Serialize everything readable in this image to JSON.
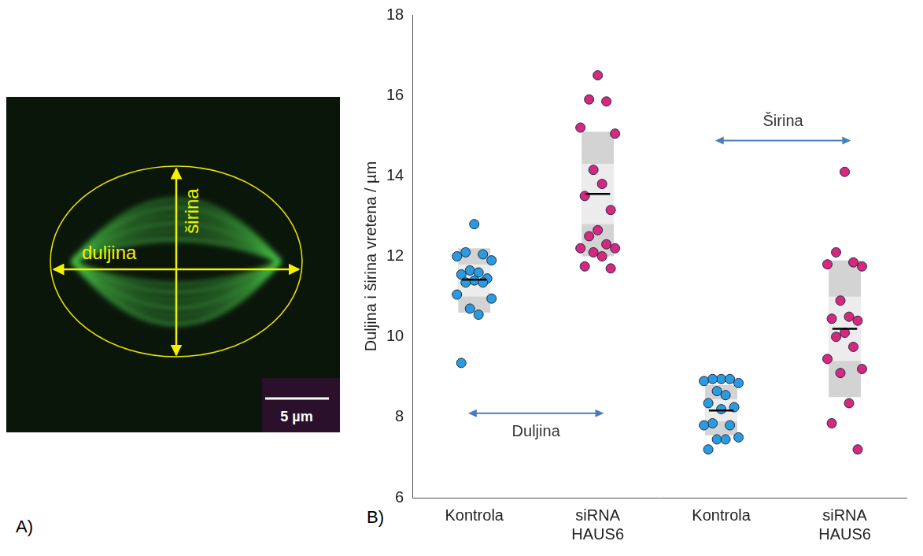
{
  "panel_a": {
    "letter": "A)",
    "length_label": "duljina",
    "width_label": "širina",
    "scale_bar": "5 µm"
  },
  "chart_data": {
    "type": "scatter",
    "letter": "B)",
    "y_label": "Duljina i širina vretena / µm",
    "ylim": [
      6,
      18
    ],
    "yticks": [
      6,
      8,
      10,
      12,
      14,
      16,
      18
    ],
    "grid": false,
    "marker": "circle",
    "groups": [
      {
        "label": "Duljina",
        "members": [
          {
            "category": "Kontrola",
            "color": "#2b9be0",
            "values": [
              12.8,
              12.1,
              12.05,
              12.0,
              11.9,
              11.65,
              11.6,
              11.55,
              11.45,
              11.4,
              11.35,
              11.35,
              11.05,
              10.95,
              10.7,
              10.55,
              9.35
            ],
            "mean": 11.42,
            "outer_band": [
              10.6,
              12.2
            ],
            "inner_band": [
              11.0,
              11.8
            ]
          },
          {
            "category": "siRNA HAUS6",
            "color": "#d6287f",
            "values": [
              16.5,
              15.9,
              15.85,
              15.2,
              15.05,
              14.15,
              13.8,
              13.5,
              13.15,
              12.65,
              12.5,
              12.3,
              12.2,
              12.2,
              12.1,
              12.0,
              11.75,
              11.7
            ],
            "mean": 13.55,
            "outer_band": [
              12.0,
              15.1
            ],
            "inner_band": [
              12.8,
              14.3
            ]
          }
        ]
      },
      {
        "label": "Širina",
        "members": [
          {
            "category": "Kontrola",
            "color": "#2b9be0",
            "values": [
              8.95,
              8.95,
              8.95,
              8.9,
              8.85,
              8.65,
              8.55,
              8.35,
              8.25,
              8.2,
              7.85,
              7.8,
              7.8,
              7.5,
              7.45,
              7.45,
              7.2
            ],
            "mean": 8.17,
            "outer_band": [
              7.55,
              8.8
            ],
            "inner_band": [
              7.9,
              8.45
            ]
          },
          {
            "category": "siRNA HAUS6",
            "color": "#d6287f",
            "values": [
              14.1,
              12.1,
              11.85,
              11.8,
              11.75,
              10.9,
              10.5,
              10.45,
              10.4,
              10.1,
              10.0,
              9.75,
              9.45,
              9.2,
              9.1,
              8.35,
              7.85,
              7.2
            ],
            "mean": 10.2,
            "outer_band": [
              8.5,
              11.9
            ],
            "inner_band": [
              9.4,
              11.0
            ]
          }
        ]
      }
    ]
  }
}
